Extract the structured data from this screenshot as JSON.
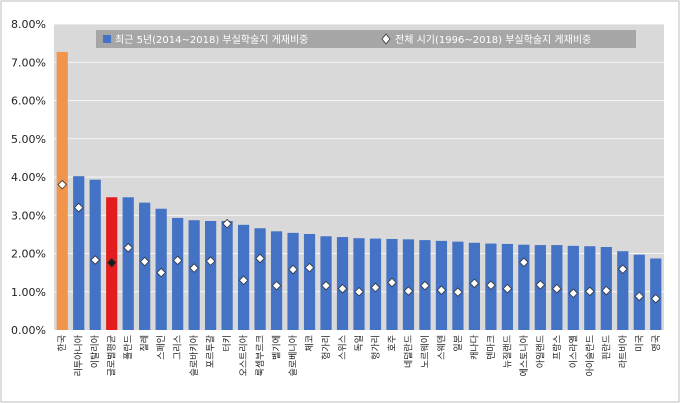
{
  "chart_data": {
    "type": "bar",
    "legend": {
      "placement": "top",
      "bar_label": "최근 5년(2014~2018) 부실학술지 게재비중",
      "marker_label": "전체 시기(1996~2018) 부실학술지 게재비중"
    },
    "y_axis": {
      "ylim": [
        0,
        8
      ],
      "ticks": [
        "0.00%",
        "1.00%",
        "2.00%",
        "3.00%",
        "4.00%",
        "5.00%",
        "6.00%",
        "7.00%",
        "8.00%"
      ],
      "grid": true
    },
    "categories": [
      "한국",
      "리투아니아",
      "이탈리아",
      "글로벌평균",
      "폴란드",
      "칠레",
      "스페인",
      "그리스",
      "슬로바키아",
      "포르투갈",
      "터키",
      "오스트리아",
      "룩셈부르크",
      "벨기에",
      "슬로베니아",
      "체코",
      "헝가리",
      "스위스",
      "독일",
      "헝가리",
      "호주",
      "네덜란드",
      "노르웨이",
      "스웨덴",
      "일본",
      "캐나다",
      "덴마크",
      "뉴질랜드",
      "에스토니아",
      "아일랜드",
      "프랑스",
      "이스라엘",
      "아이슬란드",
      "핀란드",
      "라트비아",
      "미국",
      "영국"
    ],
    "series": [
      {
        "name": "최근 5년(2014~2018) 부실학술지 게재비중",
        "kind": "bar",
        "values": [
          7.27,
          4.02,
          3.93,
          3.47,
          3.47,
          3.33,
          3.17,
          2.93,
          2.87,
          2.85,
          2.85,
          2.75,
          2.66,
          2.58,
          2.54,
          2.51,
          2.45,
          2.43,
          2.4,
          2.39,
          2.38,
          2.37,
          2.35,
          2.33,
          2.31,
          2.28,
          2.26,
          2.25,
          2.23,
          2.22,
          2.22,
          2.2,
          2.19,
          2.17,
          2.06,
          1.97,
          1.87
        ]
      },
      {
        "name": "전체 시기(1996~2018) 부실학술지 게재비중",
        "kind": "marker",
        "values": [
          3.8,
          3.2,
          1.83,
          1.76,
          2.15,
          1.79,
          1.5,
          1.82,
          1.62,
          1.8,
          2.78,
          1.3,
          1.87,
          1.16,
          1.58,
          1.63,
          1.16,
          1.08,
          1.0,
          1.11,
          1.24,
          1.02,
          1.16,
          1.04,
          0.99,
          1.22,
          1.17,
          1.08,
          1.77,
          1.18,
          1.08,
          0.96,
          1.01,
          1.03,
          1.59,
          0.88,
          0.82
        ]
      }
    ],
    "colors": {
      "default_bar": "#4472c4",
      "korea_bar": "#f0954b",
      "global_avg_bar": "#e31d1d",
      "marker_fill": "#ffffff",
      "global_avg_marker_fill": "#1a1a1a",
      "plot_background": "#d9d9d9",
      "legend_background": "#a6a6a6"
    },
    "highlights": {
      "korea_index": 0,
      "global_avg_index": 3
    }
  }
}
